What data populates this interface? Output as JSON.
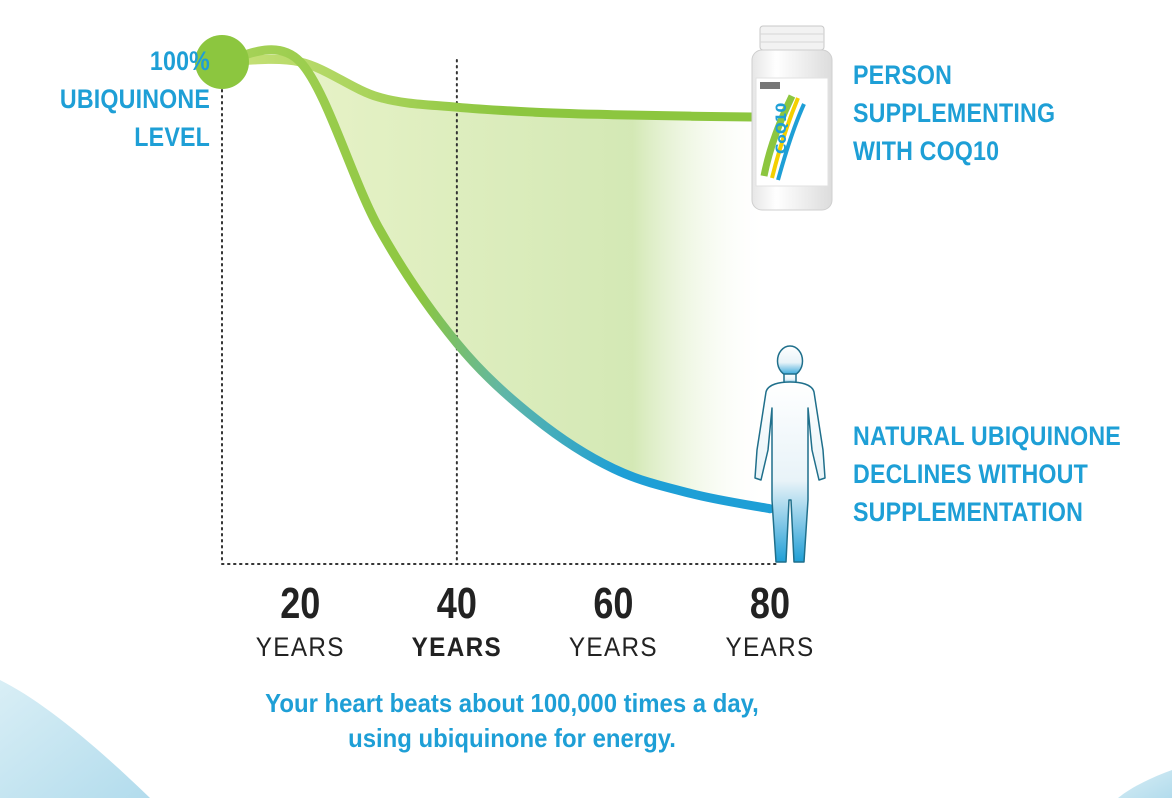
{
  "chart_data": {
    "type": "line",
    "x": [
      20,
      30,
      40,
      50,
      60,
      70,
      80
    ],
    "xlim": [
      10,
      85
    ],
    "ylim": [
      0,
      100
    ],
    "x_tick_labels": [
      {
        "value": 20,
        "number": "20",
        "unit": "YEARS",
        "emphasis": false
      },
      {
        "value": 40,
        "number": "40",
        "unit": "YEARS",
        "emphasis": true
      },
      {
        "value": 60,
        "number": "60",
        "unit": "YEARS",
        "emphasis": false
      },
      {
        "value": 80,
        "number": "80",
        "unit": "YEARS",
        "emphasis": false
      }
    ],
    "reference_lines_x": [
      10,
      40
    ],
    "series": [
      {
        "key": "supplement",
        "values": [
          100,
          93,
          91,
          90,
          89.5,
          89.2,
          89
        ],
        "color": "#8cc63f"
      },
      {
        "key": "natural",
        "values": [
          100,
          67,
          44,
          29,
          19,
          14,
          11
        ],
        "color": "#1e9fd6"
      }
    ],
    "start_point": {
      "x": 10,
      "y": 100,
      "color": "#8cc63f"
    },
    "annotations": {
      "start": [
        "100%",
        "UBIQUINONE",
        "LEVEL"
      ],
      "supplement": [
        "PERSON",
        "SUPPLEMENTING",
        "WITH COQ10"
      ],
      "natural": [
        "NATURAL UBIQUINONE",
        "DECLINES WITHOUT",
        "SUPPLEMENTATION"
      ]
    },
    "footnote": [
      "Your heart beats about 100,000 times a day,",
      "using ubiquinone for energy."
    ],
    "grid": false
  },
  "icons": {
    "bottle": "supplement-bottle-icon",
    "person": "human-silhouette-icon"
  },
  "bottle_label": "CoQ10",
  "colors": {
    "text": "#1e9fd6",
    "green": "#8cc63f",
    "blue": "#1e9fd6",
    "tick": "#222222"
  }
}
